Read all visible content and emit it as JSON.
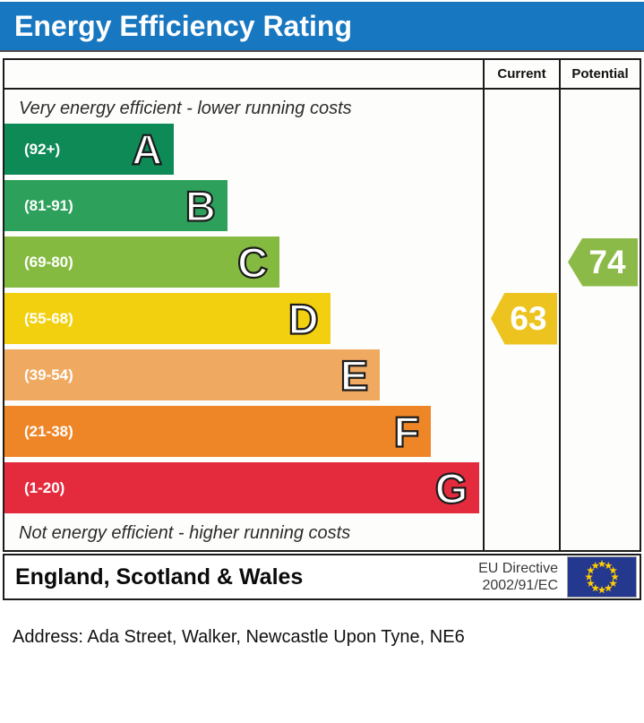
{
  "title": "Energy Efficiency Rating",
  "table": {
    "columns": [
      "Current",
      "Potential"
    ],
    "top_note": "Very energy efficient - lower running costs",
    "bottom_note": "Not energy efficient - higher running costs"
  },
  "chart_data": {
    "type": "bar",
    "orientation": "horizontal",
    "title": "Energy Efficiency Rating",
    "bands": [
      {
        "letter": "A",
        "range_label": "(92+)",
        "min": 92,
        "max": 100,
        "color": "#0e8a57",
        "width_pct": 35.4
      },
      {
        "letter": "B",
        "range_label": "(81-91)",
        "min": 81,
        "max": 91,
        "color": "#2da15b",
        "width_pct": 46.6
      },
      {
        "letter": "C",
        "range_label": "(69-80)",
        "min": 69,
        "max": 80,
        "color": "#85ba41",
        "width_pct": 57.5
      },
      {
        "letter": "D",
        "range_label": "(55-68)",
        "min": 55,
        "max": 68,
        "color": "#f3d00f",
        "width_pct": 68.1
      },
      {
        "letter": "E",
        "range_label": "(39-54)",
        "min": 39,
        "max": 54,
        "color": "#f0a961",
        "width_pct": 78.5
      },
      {
        "letter": "F",
        "range_label": "(21-38)",
        "min": 21,
        "max": 38,
        "color": "#ee8627",
        "width_pct": 89.2
      },
      {
        "letter": "G",
        "range_label": "(1-20)",
        "min": 1,
        "max": 20,
        "color": "#e42b3d",
        "width_pct": 99.3
      }
    ],
    "current": {
      "label": "Current",
      "value": 63,
      "band": "D",
      "color": "#edc41f"
    },
    "potential": {
      "label": "Potential",
      "value": 74,
      "band": "C",
      "color": "#8cba48"
    }
  },
  "footer": {
    "region": "England, Scotland & Wales",
    "directive_line1": "EU Directive",
    "directive_line2": "2002/91/EC",
    "eu_flag": {
      "background": "#24388d",
      "star_color": "#ffcc00"
    }
  },
  "address_line": "Address: Ada Street, Walker, Newcastle Upon Tyne, NE6"
}
